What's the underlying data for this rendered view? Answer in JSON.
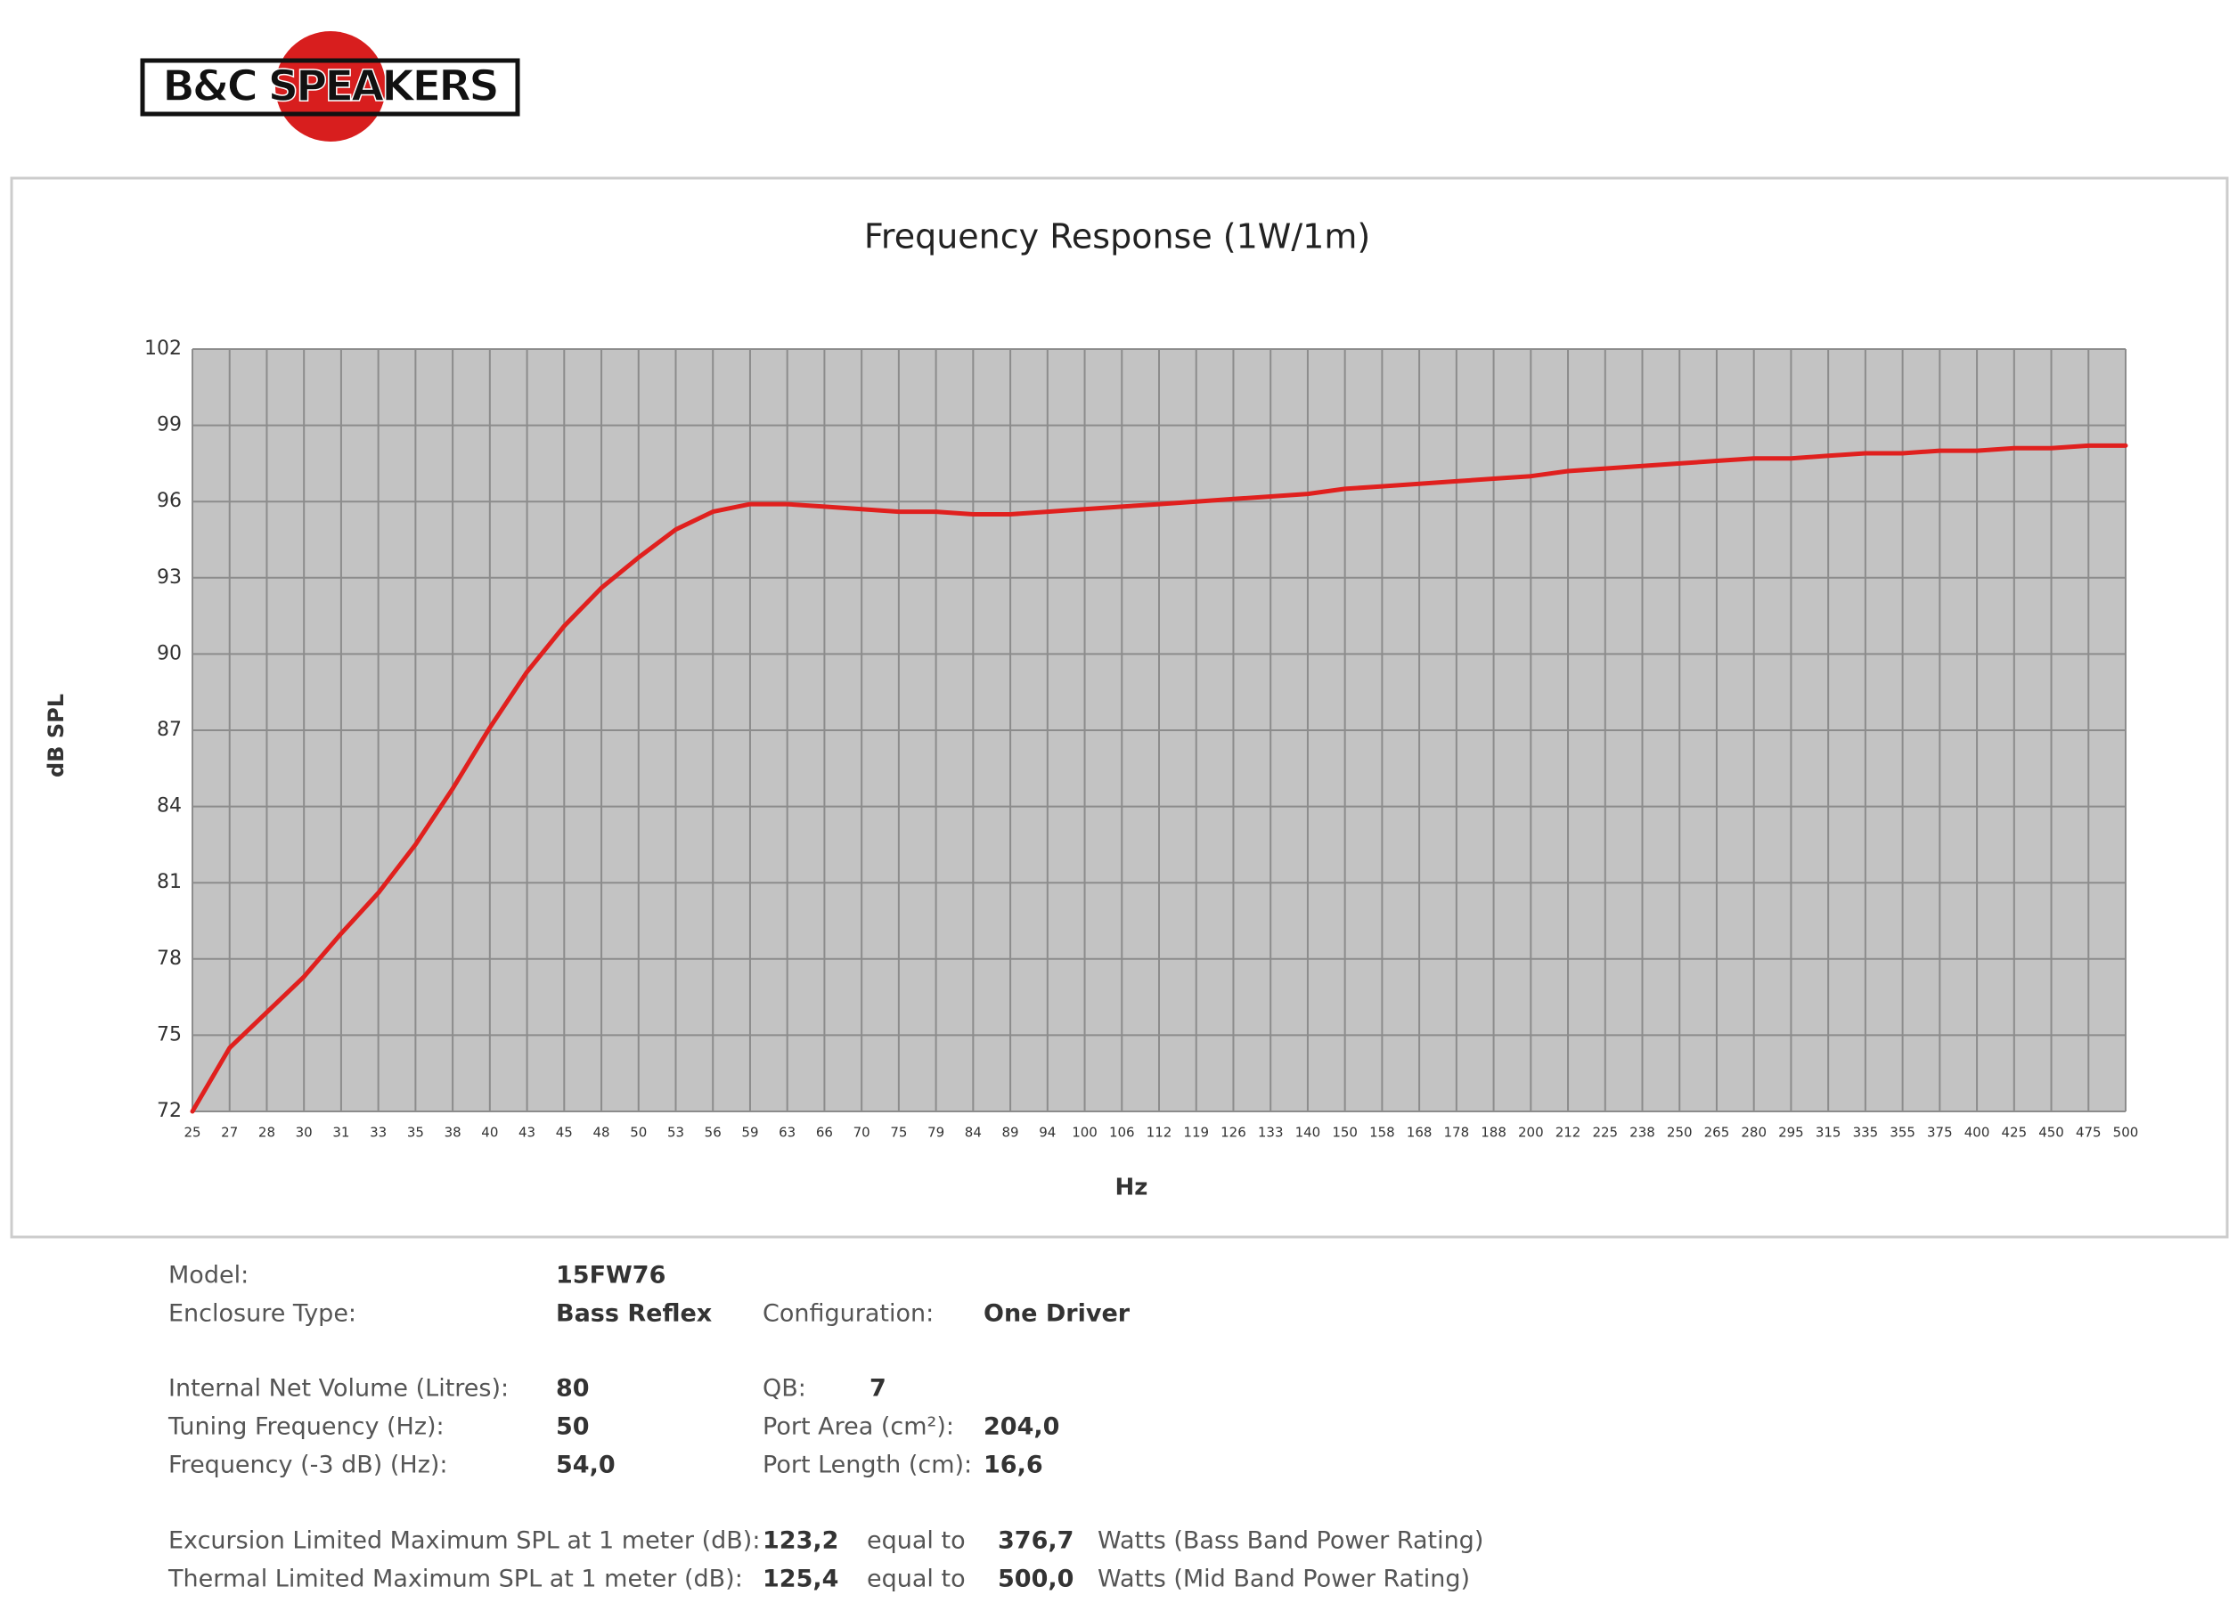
{
  "logo": "B&C SPEAKERS",
  "chart_data": {
    "type": "line",
    "title": "Frequency Response (1W/1m)",
    "x_label": "Hz",
    "y_label": "dB SPL",
    "categories": [
      "25",
      "27",
      "28",
      "30",
      "31",
      "33",
      "35",
      "38",
      "40",
      "43",
      "45",
      "48",
      "50",
      "53",
      "56",
      "59",
      "63",
      "66",
      "70",
      "75",
      "79",
      "84",
      "89",
      "94",
      "100",
      "106",
      "112",
      "119",
      "126",
      "133",
      "140",
      "150",
      "158",
      "168",
      "178",
      "188",
      "200",
      "212",
      "225",
      "238",
      "250",
      "265",
      "280",
      "295",
      "315",
      "335",
      "355",
      "375",
      "400",
      "425",
      "450",
      "475",
      "500"
    ],
    "values": [
      72,
      74.5,
      75.9,
      77.3,
      79,
      80.6,
      82.5,
      84.7,
      87.1,
      89.3,
      91.1,
      92.6,
      93.8,
      94.9,
      95.6,
      95.9,
      95.9,
      95.8,
      95.7,
      95.6,
      95.6,
      95.5,
      95.5,
      95.6,
      95.7,
      95.8,
      95.9,
      96.0,
      96.1,
      96.2,
      96.3,
      96.5,
      96.6,
      96.7,
      96.8,
      96.9,
      97.0,
      97.2,
      97.3,
      97.4,
      97.5,
      97.6,
      97.7,
      97.7,
      97.8,
      97.9,
      97.9,
      98.0,
      98.0,
      98.1,
      98.1,
      98.2,
      98.2
    ],
    "color": "#e0201e",
    "ylim": [
      72,
      102
    ],
    "yticks": [
      72,
      75,
      78,
      81,
      84,
      87,
      90,
      93,
      96,
      99,
      102
    ],
    "grid": true
  },
  "specs": [
    [
      "Model:",
      "15FW76"
    ],
    [
      "Enclosure Type:",
      "Bass Reflex",
      "Configuration:",
      "One Driver"
    ],
    [
      "Internal  Net Volume (Litres):",
      "80",
      "QB:",
      "7"
    ],
    [
      "Tuning Frequency (Hz):",
      "50",
      "Port Area (cm²):",
      "204,0"
    ],
    [
      "Frequency (-3 dB) (Hz):",
      "54,0",
      "Port Length (cm):",
      "16,6"
    ],
    [
      "Excursion Limited Maximum SPL at 1 meter (dB):",
      "123,2",
      "equal to",
      "376,7",
      "Watts (Bass Band Power Rating)"
    ],
    [
      "Thermal Limited Maximum SPL at 1 meter (dB):",
      "125,4",
      "equal to",
      "500,0",
      "Watts (Mid Band Power Rating)"
    ]
  ]
}
